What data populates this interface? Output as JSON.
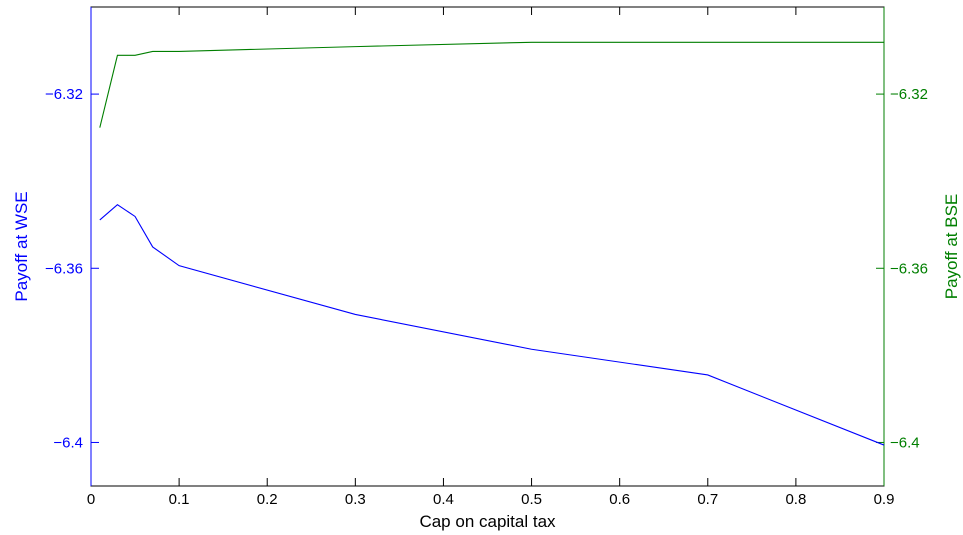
{
  "chart_data": {
    "type": "line",
    "xlabel": "Cap on capital tax",
    "ylabel_left": "Payoff at WSE",
    "ylabel_right": "Payoff at BSE",
    "xlim": [
      0,
      0.9
    ],
    "ylim_left": [
      -6.41,
      -6.3
    ],
    "ylim_right": [
      -6.41,
      -6.3
    ],
    "x_ticks": [
      0,
      0.1,
      0.2,
      0.3,
      0.4,
      0.5,
      0.6,
      0.7,
      0.8,
      0.9
    ],
    "x_tick_labels": [
      "0",
      "0.1",
      "0.2",
      "0.3",
      "0.4",
      "0.5",
      "0.6",
      "0.7",
      "0.8",
      "0.9"
    ],
    "y_ticks_left": [
      -6.32,
      -6.36,
      -6.4
    ],
    "y_tick_labels_left": [
      "−6.32",
      "−6.36",
      "−6.4"
    ],
    "y_ticks_right": [
      -6.32,
      -6.36,
      -6.4
    ],
    "y_tick_labels_right": [
      "−6.32",
      "−6.36",
      "−6.4"
    ],
    "grid": false,
    "series": [
      {
        "axis": "left",
        "color": "#0000ff",
        "x": [
          0.01,
          0.03,
          0.05,
          0.07,
          0.1,
          0.3,
          0.5,
          0.7,
          0.9
        ],
        "y": [
          -6.3489,
          -6.3454,
          -6.3481,
          -6.3551,
          -6.3594,
          -6.3706,
          -6.3786,
          -6.3845,
          -6.4006
        ]
      },
      {
        "axis": "right",
        "color": "#007f00",
        "x": [
          0.01,
          0.03,
          0.05,
          0.07,
          0.1,
          0.3,
          0.5,
          0.7,
          0.9
        ],
        "y": [
          -6.3277,
          -6.3111,
          -6.3111,
          -6.3102,
          -6.3102,
          -6.3091,
          -6.3081,
          -6.3081,
          -6.3081
        ]
      }
    ],
    "axis_colors": {
      "x": "#000000",
      "left": "#0000ff",
      "right": "#007f00"
    }
  }
}
